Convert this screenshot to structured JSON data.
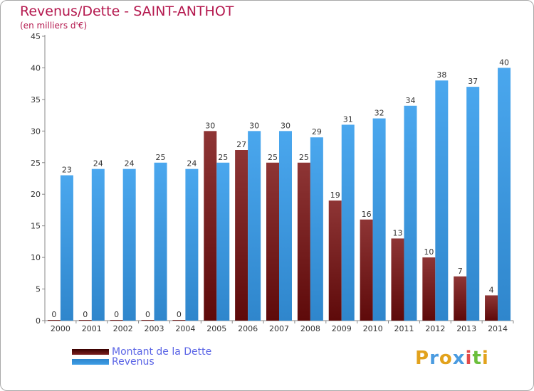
{
  "chart_data": {
    "type": "bar",
    "title": "Revenus/Dette - SAINT-ANTHOT",
    "subtitle": "(en milliers d'€)",
    "categories": [
      "2000",
      "2001",
      "2002",
      "2003",
      "2004",
      "2005",
      "2006",
      "2007",
      "2008",
      "2009",
      "2010",
      "2011",
      "2012",
      "2013",
      "2014"
    ],
    "series": [
      {
        "name": "Montant de la Dette",
        "color": "#7b1f1f",
        "values": [
          0,
          0,
          0,
          0,
          0,
          30,
          27,
          25,
          25,
          19,
          16,
          13,
          10,
          7,
          4
        ]
      },
      {
        "name": "Revenus",
        "color": "#3d9ee6",
        "values": [
          23,
          24,
          24,
          25,
          24,
          25,
          30,
          30,
          29,
          31,
          32,
          34,
          38,
          37,
          40
        ]
      }
    ],
    "ylim": [
      0,
      45
    ],
    "yticks": [
      0,
      5,
      10,
      15,
      20,
      25,
      30,
      35,
      40,
      45
    ],
    "grid": false,
    "legend": "bottom-left"
  },
  "logo": {
    "letters": [
      "P",
      "r",
      "o",
      "x",
      "i",
      "t",
      "i"
    ],
    "colors": [
      "#e2a21c",
      "#4a9be0",
      "#e2a21c",
      "#4a9be0",
      "#e24a4a",
      "#6cbf3c",
      "#e2a21c"
    ]
  }
}
